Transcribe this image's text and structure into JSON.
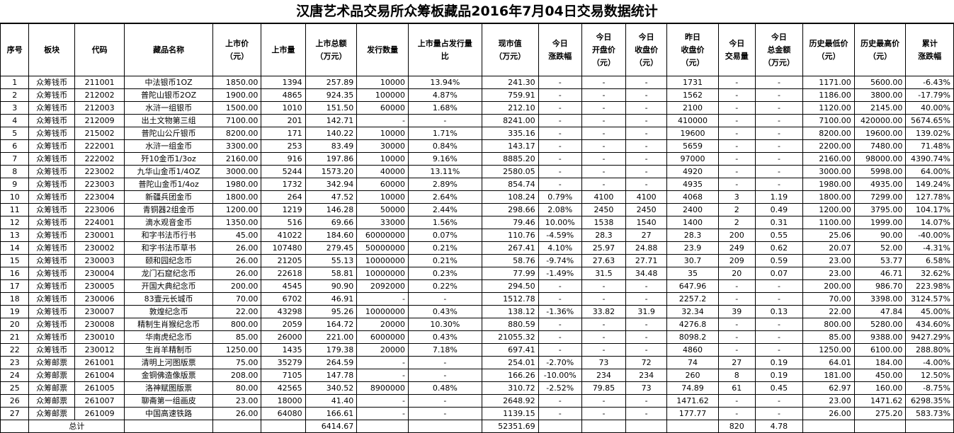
{
  "title": "汉唐艺术品交易所众筹板藏品2016年7月04日交易数据统计",
  "headers": [
    "序号",
    "板块",
    "代码",
    "藏品名称",
    "上市价\n（元）",
    "上市量",
    "上市总额\n（万元）",
    "发行数量",
    "上市量占发行量\n比",
    "现市值\n（万元）",
    "今日\n涨跌幅",
    "今日\n开盘价\n（元）",
    "今日\n收盘价\n（元）",
    "昨日\n收盘价\n（元）",
    "今日\n交易量",
    "今日\n总金额\n（万元）",
    "历史最低价\n（元）",
    "历史最高价\n（元）",
    "累计\n涨跌幅"
  ],
  "rows": [
    [
      "1",
      "众筹钱币",
      "211001",
      "中法银币1OZ",
      "1850.00",
      "1394",
      "257.89",
      "10000",
      "13.94%",
      "241.30",
      "-",
      "-",
      "-",
      "1731",
      "-",
      "-",
      "1171.00",
      "5600.00",
      "-6.43%"
    ],
    [
      "2",
      "众筹钱币",
      "212002",
      "普陀山银币2OZ",
      "1900.00",
      "4865",
      "924.35",
      "100000",
      "4.87%",
      "759.91",
      "-",
      "-",
      "-",
      "1562",
      "-",
      "-",
      "1186.00",
      "3800.00",
      "-17.79%"
    ],
    [
      "3",
      "众筹钱币",
      "212003",
      "水浒一组银币",
      "1500.00",
      "1010",
      "151.50",
      "60000",
      "1.68%",
      "212.10",
      "-",
      "-",
      "-",
      "2100",
      "-",
      "-",
      "1120.00",
      "2145.00",
      "40.00%"
    ],
    [
      "4",
      "众筹钱币",
      "212009",
      "出土文物第三组",
      "7100.00",
      "201",
      "142.71",
      "-",
      "-",
      "8241.00",
      "-",
      "-",
      "-",
      "410000",
      "-",
      "-",
      "7100.00",
      "420000.00",
      "5674.65%"
    ],
    [
      "5",
      "众筹钱币",
      "215002",
      "普陀山公斤银币",
      "8200.00",
      "171",
      "140.22",
      "10000",
      "1.71%",
      "335.16",
      "-",
      "-",
      "-",
      "19600",
      "-",
      "-",
      "8200.00",
      "19600.00",
      "139.02%"
    ],
    [
      "6",
      "众筹钱币",
      "222001",
      "水浒一组金币",
      "3300.00",
      "253",
      "83.49",
      "30000",
      "0.84%",
      "143.17",
      "-",
      "-",
      "-",
      "5659",
      "-",
      "-",
      "2200.00",
      "7480.00",
      "71.48%"
    ],
    [
      "7",
      "众筹钱币",
      "222002",
      "歼10金币1/3oz",
      "2160.00",
      "916",
      "197.86",
      "10000",
      "9.16%",
      "8885.20",
      "-",
      "-",
      "-",
      "97000",
      "-",
      "-",
      "2160.00",
      "98000.00",
      "4390.74%"
    ],
    [
      "8",
      "众筹钱币",
      "223002",
      "九华山金币1/4OZ",
      "3000.00",
      "5244",
      "1573.20",
      "40000",
      "13.11%",
      "2580.05",
      "-",
      "-",
      "-",
      "4920",
      "-",
      "-",
      "3000.00",
      "5998.00",
      "64.00%"
    ],
    [
      "9",
      "众筹钱币",
      "223003",
      "普陀山金币1/4oz",
      "1980.00",
      "1732",
      "342.94",
      "60000",
      "2.89%",
      "854.74",
      "-",
      "-",
      "-",
      "4935",
      "-",
      "-",
      "1980.00",
      "4935.00",
      "149.24%"
    ],
    [
      "10",
      "众筹钱币",
      "223004",
      "新疆兵团金币",
      "1800.00",
      "264",
      "47.52",
      "10000",
      "2.64%",
      "108.24",
      "0.79%",
      "4100",
      "4100",
      "4068",
      "3",
      "1.19",
      "1800.00",
      "7299.00",
      "127.78%"
    ],
    [
      "11",
      "众筹钱币",
      "223006",
      "青铜器2组金币",
      "1200.00",
      "1219",
      "146.28",
      "50000",
      "2.44%",
      "298.66",
      "2.08%",
      "2450",
      "2450",
      "2400",
      "2",
      "0.49",
      "1200.00",
      "3795.00",
      "104.17%"
    ],
    [
      "12",
      "众筹钱币",
      "224001",
      "滴水观音金币",
      "1350.00",
      "516",
      "69.66",
      "33000",
      "1.56%",
      "79.46",
      "10.00%",
      "1538",
      "1540",
      "1400",
      "2",
      "0.31",
      "1100.00",
      "1999.00",
      "14.07%"
    ],
    [
      "13",
      "众筹钱币",
      "230001",
      "和字书法币行书",
      "45.00",
      "41022",
      "184.60",
      "60000000",
      "0.07%",
      "110.76",
      "-4.59%",
      "28.3",
      "27",
      "28.3",
      "200",
      "0.55",
      "25.06",
      "90.00",
      "-40.00%"
    ],
    [
      "14",
      "众筹钱币",
      "230002",
      "和字书法币草书",
      "26.00",
      "107480",
      "279.45",
      "50000000",
      "0.21%",
      "267.41",
      "4.10%",
      "25.97",
      "24.88",
      "23.9",
      "249",
      "0.62",
      "20.07",
      "52.00",
      "-4.31%"
    ],
    [
      "15",
      "众筹钱币",
      "230003",
      "颐和园纪念币",
      "26.00",
      "21205",
      "55.13",
      "10000000",
      "0.21%",
      "58.76",
      "-9.74%",
      "27.63",
      "27.71",
      "30.7",
      "209",
      "0.59",
      "23.00",
      "53.77",
      "6.58%"
    ],
    [
      "16",
      "众筹钱币",
      "230004",
      "龙门石窟纪念币",
      "26.00",
      "22618",
      "58.81",
      "10000000",
      "0.23%",
      "77.99",
      "-1.49%",
      "31.5",
      "34.48",
      "35",
      "20",
      "0.07",
      "23.00",
      "46.71",
      "32.62%"
    ],
    [
      "17",
      "众筹钱币",
      "230005",
      "开国大典纪念币",
      "200.00",
      "4545",
      "90.90",
      "2092000",
      "0.22%",
      "294.50",
      "-",
      "-",
      "-",
      "647.96",
      "-",
      "-",
      "200.00",
      "986.70",
      "223.98%"
    ],
    [
      "18",
      "众筹钱币",
      "230006",
      "83壹元长城币",
      "70.00",
      "6702",
      "46.91",
      "-",
      "-",
      "1512.78",
      "-",
      "-",
      "-",
      "2257.2",
      "-",
      "-",
      "70.00",
      "3398.00",
      "3124.57%"
    ],
    [
      "19",
      "众筹钱币",
      "230007",
      "敦煌纪念币",
      "22.00",
      "43298",
      "95.26",
      "10000000",
      "0.43%",
      "138.12",
      "-1.36%",
      "33.82",
      "31.9",
      "32.34",
      "39",
      "0.13",
      "22.00",
      "47.84",
      "45.00%"
    ],
    [
      "20",
      "众筹钱币",
      "230008",
      "精制生肖猴纪念币",
      "800.00",
      "2059",
      "164.72",
      "20000",
      "10.30%",
      "880.59",
      "-",
      "-",
      "-",
      "4276.8",
      "-",
      "-",
      "800.00",
      "5280.00",
      "434.60%"
    ],
    [
      "21",
      "众筹钱币",
      "230010",
      "华南虎纪念币",
      "85.00",
      "26000",
      "221.00",
      "6000000",
      "0.43%",
      "21055.32",
      "-",
      "-",
      "-",
      "8098.2",
      "-",
      "-",
      "85.00",
      "9388.00",
      "9427.29%"
    ],
    [
      "22",
      "众筹钱币",
      "230012",
      "生肖羊精制币",
      "1250.00",
      "1435",
      "179.38",
      "20000",
      "7.18%",
      "697.41",
      "-",
      "-",
      "-",
      "4860",
      "-",
      "-",
      "1250.00",
      "6100.00",
      "288.80%"
    ],
    [
      "23",
      "众筹邮票",
      "261001",
      "清明上河图版票",
      "75.00",
      "35279",
      "264.59",
      "-",
      "-",
      "254.01",
      "-2.70%",
      "73",
      "72",
      "74",
      "27",
      "0.19",
      "64.01",
      "184.00",
      "-4.00%"
    ],
    [
      "24",
      "众筹邮票",
      "261004",
      "金铜佛造像版票",
      "208.00",
      "7105",
      "147.78",
      "-",
      "-",
      "166.26",
      "-10.00%",
      "234",
      "234",
      "260",
      "8",
      "0.19",
      "181.00",
      "450.00",
      "12.50%"
    ],
    [
      "25",
      "众筹邮票",
      "261005",
      "洛神赋图版票",
      "80.00",
      "42565",
      "340.52",
      "8900000",
      "0.48%",
      "310.72",
      "-2.52%",
      "79.85",
      "73",
      "74.89",
      "61",
      "0.45",
      "62.97",
      "160.00",
      "-8.75%"
    ],
    [
      "26",
      "众筹邮票",
      "261007",
      "聊斋第一组画皮",
      "23.00",
      "18000",
      "41.40",
      "-",
      "-",
      "2648.92",
      "-",
      "-",
      "-",
      "1471.62",
      "-",
      "-",
      "23.00",
      "1471.62",
      "6298.35%"
    ],
    [
      "27",
      "众筹邮票",
      "261009",
      "中国高速铁路",
      "26.00",
      "64080",
      "166.61",
      "-",
      "-",
      "1139.15",
      "-",
      "-",
      "-",
      "177.77",
      "-",
      "-",
      "26.00",
      "275.20",
      "583.73%"
    ]
  ],
  "total": {
    "label": "总计",
    "total_amount": "6414.67",
    "market_value": "52351.69",
    "volume": "820",
    "turnover": "4.78"
  }
}
